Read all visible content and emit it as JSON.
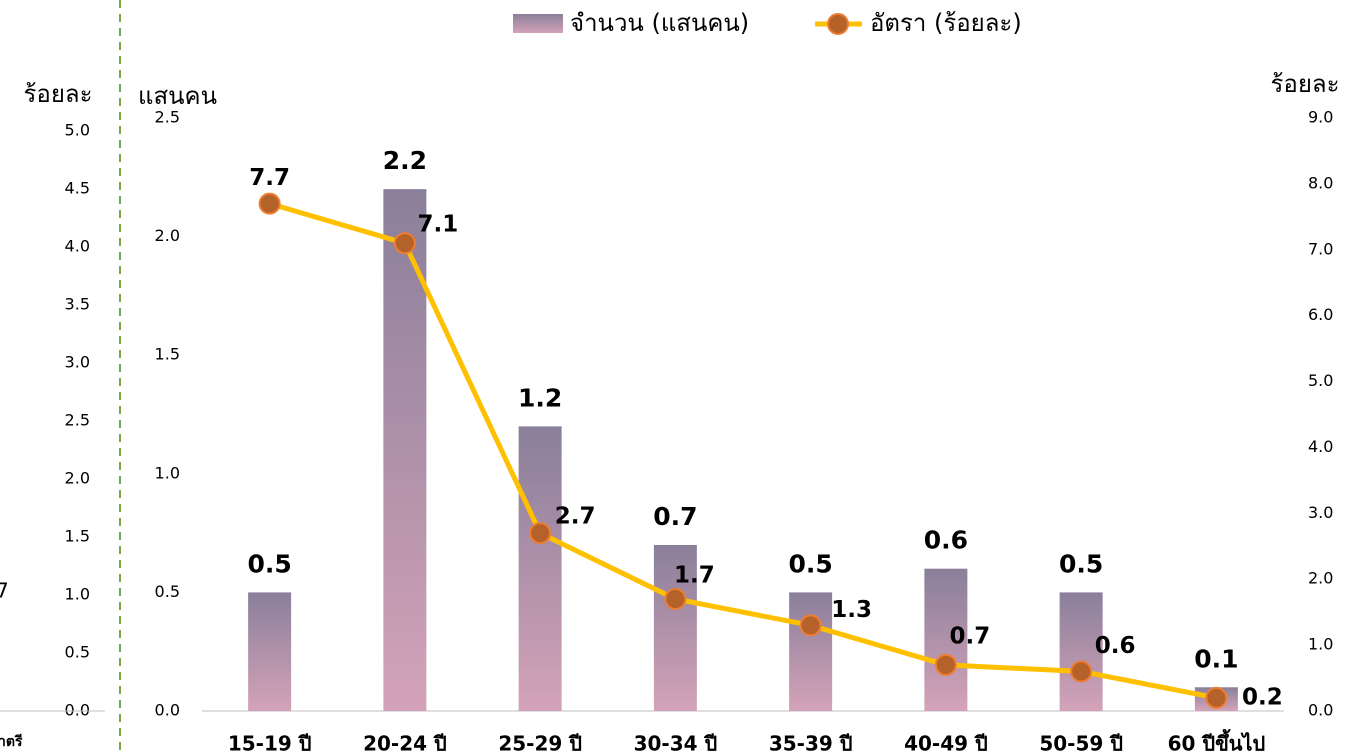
{
  "chart_data": [
    {
      "type": "axis",
      "y_label": "ร้อยละ",
      "ylim": [
        0,
        5
      ],
      "yticks": [
        {
          "value": 0,
          "label": "0.0"
        },
        0.5,
        {
          "value": 1,
          "label": "1.0"
        },
        1.5,
        {
          "value": 2,
          "label": "2.0"
        },
        2.5,
        {
          "value": 3,
          "label": "3.0"
        },
        3.5,
        {
          "value": 4,
          "label": "4.0"
        },
        4.5,
        {
          "value": 5,
          "label": "5.0"
        }
      ],
      "annotations": [
        "7",
        "าตรี"
      ]
    },
    {
      "type": "combo",
      "y_label": "แสนคน",
      "y2_label": "ร้อยละ",
      "categories": [
        "15-19 ปี",
        "20-24 ปี",
        "25-29 ปี",
        "30-34 ปี",
        "35-39 ปี",
        "40-49 ปี",
        "50-59 ปี",
        "60 ปีขึ้นไป"
      ],
      "ylim": [
        0,
        2.5
      ],
      "yticks": [
        {
          "value": 0,
          "label": "0.0"
        },
        0.5,
        {
          "value": 1,
          "label": "1.0"
        },
        1.5,
        {
          "value": 2,
          "label": "2.0"
        },
        2.5
      ],
      "y2lim": [
        0,
        9
      ],
      "y2ticks": [
        {
          "value": 0,
          "label": "0.0"
        },
        {
          "value": 1,
          "label": "1.0"
        },
        {
          "value": 2,
          "label": "2.0"
        },
        {
          "value": 3,
          "label": "3.0"
        },
        {
          "value": 4,
          "label": "4.0"
        },
        {
          "value": 5,
          "label": "5.0"
        },
        {
          "value": 6,
          "label": "6.0"
        },
        {
          "value": 7,
          "label": "7.0"
        },
        {
          "value": 8,
          "label": "8.0"
        },
        {
          "value": 9,
          "label": "9.0"
        }
      ],
      "legend": "top",
      "series": [
        {
          "name": "จำนวน (แสนคน)",
          "type": "bar",
          "color": [
            "#8a7f9a",
            "#d4a3b9"
          ],
          "label_color": "#1f2a5c",
          "values": [
            0.5,
            2.2,
            1.2,
            0.7,
            0.5,
            0.6,
            0.5,
            0.1
          ]
        },
        {
          "name": "อัตรา (ร้อยละ)",
          "type": "line",
          "axis": "y2",
          "color": "#ffc000",
          "marker_color": "#b5612a",
          "label_color": "#c55a11",
          "values": [
            7.7,
            7.1,
            2.7,
            1.7,
            1.3,
            0.7,
            0.6,
            0.2
          ]
        }
      ]
    }
  ]
}
